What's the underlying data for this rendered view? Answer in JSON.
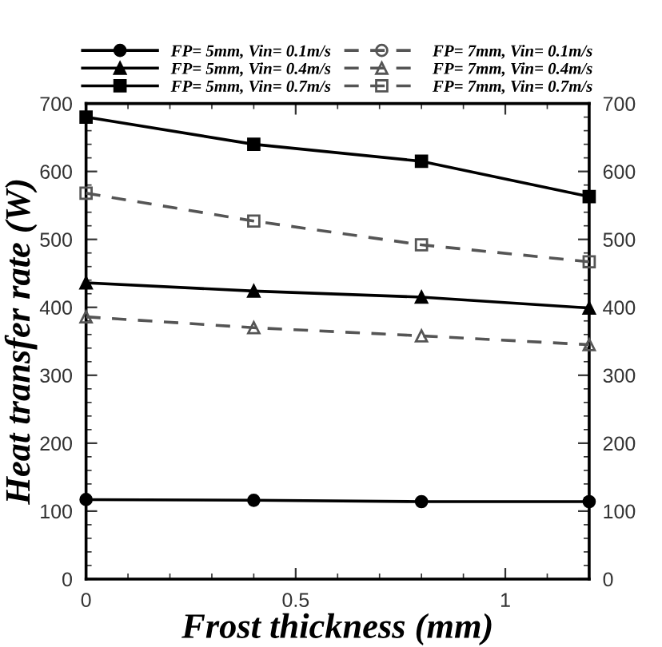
{
  "chart_data": {
    "type": "line",
    "xlabel": "Frost thickness (mm)",
    "ylabel": "Heat transfer rate (W)",
    "x": [
      0,
      0.4,
      0.8,
      1.2
    ],
    "series": [
      {
        "name": "FP= 5mm, Vin= 0.1m/s",
        "color": "#000000",
        "marker": "circle",
        "line_style": "solid",
        "values": [
          117,
          116,
          114,
          114
        ]
      },
      {
        "name": "FP= 5mm, Vin= 0.4m/s",
        "color": "#000000",
        "marker": "triangle",
        "line_style": "solid",
        "values": [
          436,
          424,
          415,
          399
        ]
      },
      {
        "name": "FP= 5mm, Vin= 0.7m/s",
        "color": "#000000",
        "marker": "square",
        "line_style": "solid",
        "values": [
          680,
          640,
          615,
          563
        ]
      },
      {
        "name": "FP= 7mm, Vin= 0.1m/s",
        "color": "#555555",
        "marker": "circle",
        "line_style": "dashed",
        "values": [
          null,
          null,
          null,
          null
        ]
      },
      {
        "name": "FP= 7mm, Vin= 0.4m/s",
        "color": "#555555",
        "marker": "triangle",
        "line_style": "dashed",
        "values": [
          386,
          370,
          358,
          345
        ]
      },
      {
        "name": "FP= 7mm, Vin= 0.7m/s",
        "color": "#555555",
        "marker": "square",
        "line_style": "dashed",
        "values": [
          568,
          527,
          492,
          467
        ]
      }
    ],
    "xlim": [
      0,
      1.2
    ],
    "xticks": [
      0,
      0.5,
      1
    ],
    "ylim": [
      0,
      700
    ],
    "yticks": [
      0,
      100,
      200,
      300,
      400,
      500,
      600,
      700
    ],
    "y2lim": [
      0,
      700
    ],
    "y2ticks": [
      0,
      100,
      200,
      300,
      400,
      500,
      600,
      700
    ],
    "grid": false,
    "legend": "top"
  }
}
